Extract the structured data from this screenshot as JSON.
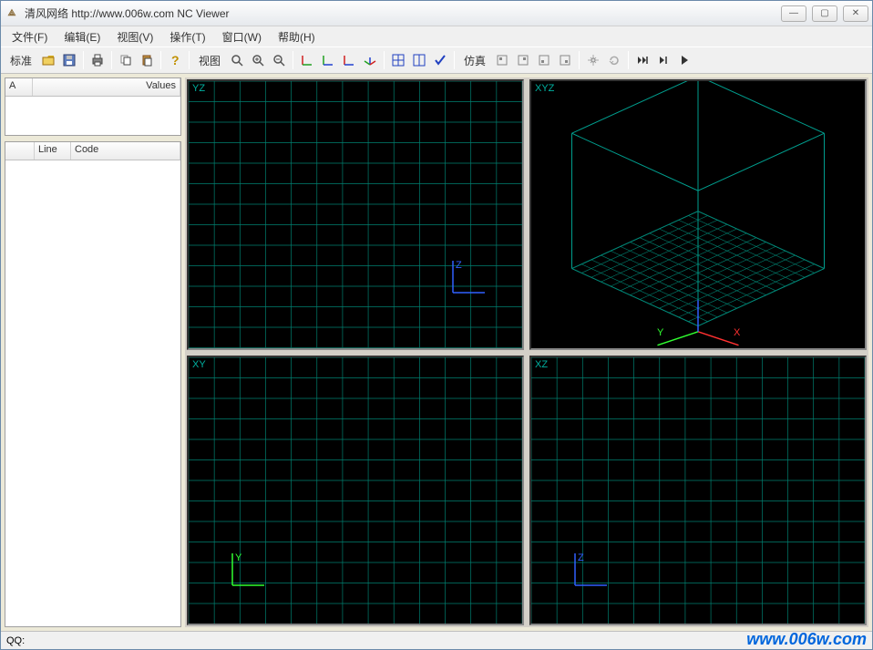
{
  "window": {
    "title": "清风网络 http://www.006w.com NC Viewer",
    "controls": {
      "min": "—",
      "max": "▢",
      "close": "✕"
    }
  },
  "menus": [
    "文件(F)",
    "编辑(E)",
    "视图(V)",
    "操作(T)",
    "窗口(W)",
    "帮助(H)"
  ],
  "toolbar": {
    "group1_label": "标准",
    "group2_label": "视图",
    "group3_label": "仿真"
  },
  "left": {
    "top_headers": {
      "h1": "A",
      "h2": "Values"
    },
    "bottom_headers": {
      "h1": "",
      "h2": "Line",
      "h3": "Code"
    }
  },
  "viewports": {
    "tl": {
      "label": "YZ",
      "axis1": {
        "text": "Z",
        "color": "#3060ff"
      }
    },
    "tr": {
      "label": "XYZ",
      "axis_x": {
        "text": "X",
        "color": "#ff3030"
      },
      "axis_y": {
        "text": "Y",
        "color": "#30ff30"
      }
    },
    "bl": {
      "label": "XY",
      "axis1": {
        "text": "Y",
        "color": "#30ff30"
      }
    },
    "br": {
      "label": "XZ",
      "axis1": {
        "text": "Z",
        "color": "#3060ff"
      }
    }
  },
  "grid_style": {
    "color": "#008070",
    "background": "#000000",
    "cells": 13,
    "cube_color": "#00a090"
  },
  "statusbar": {
    "label": "QQ:"
  },
  "watermark": "www.006w.com"
}
